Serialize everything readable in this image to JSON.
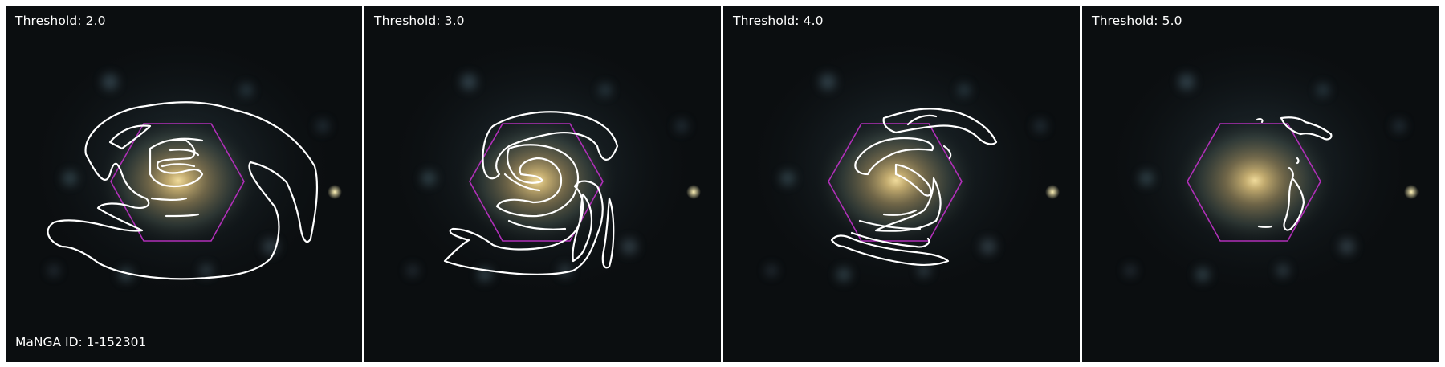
{
  "panels": [
    {
      "threshold_label": "Threshold: 2.0"
    },
    {
      "threshold_label": "Threshold: 3.0"
    },
    {
      "threshold_label": "Threshold: 4.0"
    },
    {
      "threshold_label": "Threshold: 5.0"
    }
  ],
  "manga_id_label": "MaNGA ID: 1-152301",
  "colors": {
    "contour": "#ffffff",
    "hexagon": "#b02fb8",
    "background": "#0b0e10",
    "galaxy_core": "#e6d095"
  }
}
